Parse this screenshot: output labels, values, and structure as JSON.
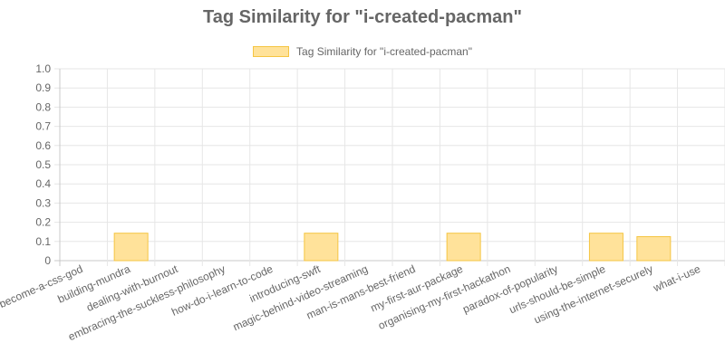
{
  "page": {
    "title": "Tag Similarity for \"i-created-pacman\""
  },
  "colors": {
    "bar_fill": "#ffe29a",
    "bar_stroke": "#f5c542",
    "grid": "#e6e6e6",
    "axis": "#c9c9c9",
    "text": "#666666"
  },
  "chart_data": {
    "type": "bar",
    "title": "Tag Similarity for \"i-created-pacman\"",
    "legend": {
      "position": "top",
      "label": "Tag Similarity for \"i-created-pacman\""
    },
    "grid": true,
    "categories": [
      "become-a-css-god",
      "building-mundra",
      "dealing-with-burnout",
      "embracing-the-suckless-philosophy",
      "how-do-i-learn-to-code",
      "introducing-swft",
      "magic-behind-video-streaming",
      "man-is-mans-best-friend",
      "my-first-aur-package",
      "organising-my-first-hackathon",
      "paradox-of-popularity",
      "urls-should-be-simple",
      "using-the-internet-securely",
      "what-i-use"
    ],
    "series": [
      {
        "name": "Tag Similarity for \"i-created-pacman\"",
        "values": [
          0,
          0.143,
          0,
          0,
          0,
          0.143,
          0,
          0,
          0.143,
          0,
          0,
          0.143,
          0.125,
          0
        ]
      }
    ],
    "ylim": [
      0,
      1
    ],
    "yticks": [
      0,
      0.1,
      0.2,
      0.3,
      0.4,
      0.5,
      0.6,
      0.7,
      0.8,
      0.9,
      1.0
    ],
    "ytick_labels": [
      "0",
      "0.1",
      "0.2",
      "0.3",
      "0.4",
      "0.5",
      "0.6",
      "0.7",
      "0.8",
      "0.9",
      "1.0"
    ],
    "xlabel": "",
    "ylabel": ""
  }
}
